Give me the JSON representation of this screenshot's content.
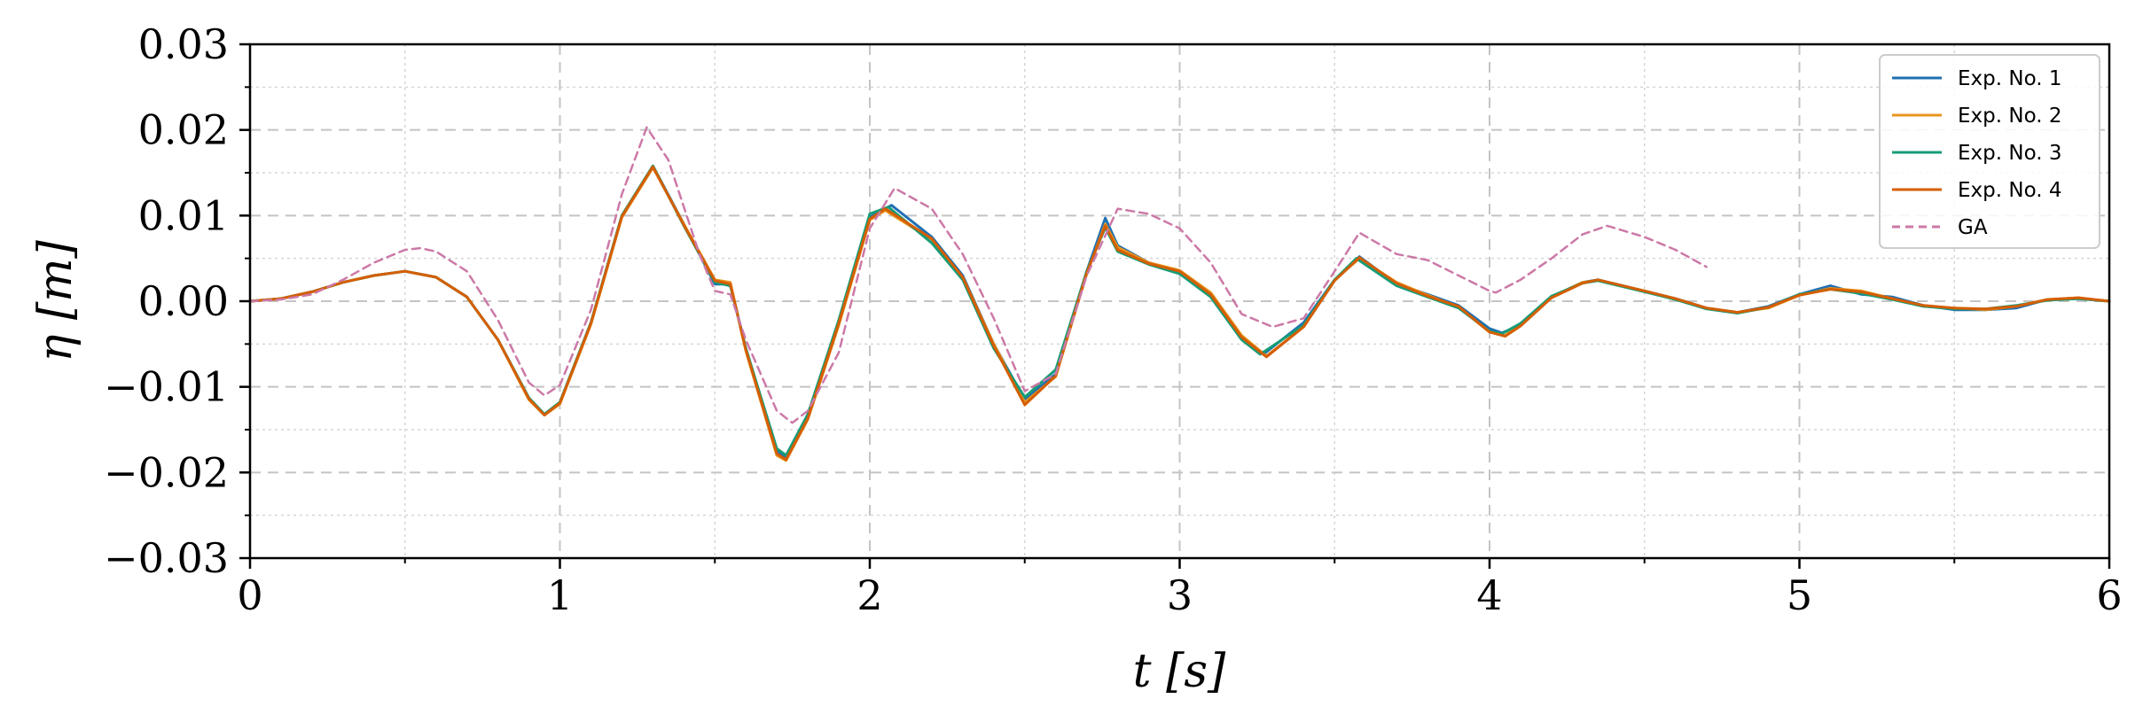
{
  "chart_data": {
    "type": "line",
    "title": "",
    "xlabel": "t [s]",
    "ylabel": "η [m]",
    "xlim": [
      0,
      6
    ],
    "ylim": [
      -0.03,
      0.03
    ],
    "xticks": [
      0,
      1,
      2,
      3,
      4,
      5,
      6
    ],
    "xtick_labels": [
      "0",
      "1",
      "2",
      "3",
      "4",
      "5",
      "6"
    ],
    "yticks": [
      -0.03,
      -0.02,
      -0.01,
      0.0,
      0.01,
      0.02,
      0.03
    ],
    "ytick_labels": [
      "−0.03",
      "−0.02",
      "−0.01",
      "0.00",
      "0.01",
      "0.02",
      "0.03"
    ],
    "grid": true,
    "legend_position": "top-right",
    "series": [
      {
        "name": "Exp. No. 1",
        "color": "#1f6fb2",
        "style": "solid",
        "x": [
          0,
          0.1,
          0.2,
          0.3,
          0.4,
          0.5,
          0.6,
          0.7,
          0.8,
          0.9,
          0.95,
          1.0,
          1.1,
          1.2,
          1.3,
          1.4,
          1.5,
          1.55,
          1.6,
          1.7,
          1.73,
          1.8,
          1.9,
          2.0,
          2.07,
          2.2,
          2.3,
          2.4,
          2.5,
          2.6,
          2.7,
          2.76,
          2.8,
          2.9,
          3.0,
          3.1,
          3.2,
          3.27,
          3.4,
          3.5,
          3.58,
          3.7,
          3.8,
          3.9,
          4.0,
          4.04,
          4.1,
          4.2,
          4.3,
          4.35,
          4.5,
          4.6,
          4.7,
          4.8,
          4.9,
          5.0,
          5.1,
          5.2,
          5.3,
          5.4,
          5.5,
          5.6,
          5.7,
          5.8,
          5.9,
          6.0
        ],
        "y": [
          0,
          0.0003,
          0.0011,
          0.0022,
          0.003,
          0.0035,
          0.0028,
          0.0005,
          -0.0045,
          -0.0113,
          -0.0132,
          -0.0118,
          -0.0025,
          0.01,
          0.0158,
          0.009,
          0.002,
          0.002,
          -0.0055,
          -0.0175,
          -0.0183,
          -0.0135,
          -0.0025,
          0.0098,
          0.0112,
          0.0075,
          0.003,
          -0.005,
          -0.0115,
          -0.0085,
          0.0035,
          0.0097,
          0.0065,
          0.0045,
          0.0035,
          0.0008,
          -0.0042,
          -0.0062,
          -0.0025,
          0.0025,
          0.0052,
          0.002,
          0.0008,
          -0.0005,
          -0.0032,
          -0.0037,
          -0.0028,
          0.0005,
          0.0022,
          0.0025,
          0.0012,
          0.0003,
          -0.0008,
          -0.0013,
          -0.0006,
          0.0008,
          0.0018,
          0.0008,
          0.0005,
          -0.0005,
          -0.001,
          -0.001,
          -0.0008,
          0.0002,
          0.0003,
          0
        ]
      },
      {
        "name": "Exp. No. 2",
        "color": "#e8961e",
        "style": "solid",
        "x": [
          0,
          0.1,
          0.2,
          0.3,
          0.4,
          0.5,
          0.6,
          0.7,
          0.8,
          0.9,
          0.95,
          1.0,
          1.1,
          1.2,
          1.3,
          1.4,
          1.5,
          1.55,
          1.6,
          1.7,
          1.73,
          1.8,
          1.9,
          2.0,
          2.05,
          2.2,
          2.3,
          2.4,
          2.5,
          2.6,
          2.7,
          2.76,
          2.8,
          2.9,
          3.0,
          3.1,
          3.2,
          3.28,
          3.4,
          3.5,
          3.58,
          3.7,
          3.8,
          3.9,
          4.0,
          4.05,
          4.1,
          4.2,
          4.3,
          4.35,
          4.5,
          4.6,
          4.7,
          4.8,
          4.9,
          5.0,
          5.1,
          5.2,
          5.3,
          5.4,
          5.5,
          5.6,
          5.7,
          5.8,
          5.9,
          6.0
        ],
        "y": [
          0,
          0.0003,
          0.0011,
          0.0022,
          0.003,
          0.0035,
          0.0028,
          0.0005,
          -0.0045,
          -0.0115,
          -0.0133,
          -0.012,
          -0.0027,
          0.0098,
          0.0156,
          0.009,
          0.0025,
          0.0022,
          -0.0058,
          -0.018,
          -0.0186,
          -0.0138,
          -0.0028,
          0.0095,
          0.0106,
          0.0072,
          0.0028,
          -0.005,
          -0.0118,
          -0.0088,
          0.0032,
          0.009,
          0.0063,
          0.0045,
          0.0036,
          0.001,
          -0.004,
          -0.0064,
          -0.003,
          0.0025,
          0.005,
          0.0022,
          0.0007,
          -0.0007,
          -0.0036,
          -0.004,
          -0.0028,
          0.0005,
          0.0022,
          0.0024,
          0.0012,
          0.0002,
          -0.0008,
          -0.0013,
          -0.0008,
          0.0007,
          0.0015,
          0.0012,
          0.0003,
          -0.0006,
          -0.0008,
          -0.001,
          -0.0006,
          0.0002,
          0.0004,
          0
        ]
      },
      {
        "name": "Exp. No. 3",
        "color": "#169c78",
        "style": "solid",
        "x": [
          0,
          0.1,
          0.2,
          0.3,
          0.4,
          0.5,
          0.6,
          0.7,
          0.8,
          0.9,
          0.95,
          1.0,
          1.1,
          1.2,
          1.3,
          1.4,
          1.5,
          1.55,
          1.6,
          1.7,
          1.73,
          1.8,
          1.9,
          2.0,
          2.06,
          2.2,
          2.3,
          2.4,
          2.5,
          2.6,
          2.7,
          2.76,
          2.8,
          2.9,
          3.0,
          3.1,
          3.2,
          3.26,
          3.4,
          3.5,
          3.57,
          3.7,
          3.8,
          3.9,
          4.0,
          4.04,
          4.1,
          4.2,
          4.3,
          4.35,
          4.5,
          4.6,
          4.7,
          4.8,
          4.9,
          5.0,
          5.1,
          5.2,
          5.3,
          5.4,
          5.5,
          5.6,
          5.7,
          5.8,
          5.9,
          6.0
        ],
        "y": [
          0,
          0.0003,
          0.0011,
          0.0022,
          0.003,
          0.0035,
          0.0028,
          0.0005,
          -0.0045,
          -0.0113,
          -0.0132,
          -0.0118,
          -0.0025,
          0.01,
          0.0158,
          0.0088,
          0.0022,
          0.0018,
          -0.0055,
          -0.0172,
          -0.018,
          -0.0132,
          -0.0022,
          0.0102,
          0.011,
          0.0068,
          0.0025,
          -0.0055,
          -0.0112,
          -0.008,
          0.0035,
          0.0086,
          0.0058,
          0.0043,
          0.0032,
          0.0005,
          -0.0045,
          -0.0062,
          -0.0028,
          0.0025,
          0.005,
          0.0018,
          0.0005,
          -0.0008,
          -0.0035,
          -0.0038,
          -0.0026,
          0.0006,
          0.0021,
          0.0024,
          0.0011,
          0.0002,
          -0.0009,
          -0.0014,
          -0.0007,
          0.0008,
          0.0014,
          0.0009,
          0.0002,
          -0.0006,
          -0.0009,
          -0.0009,
          -0.0005,
          0.0001,
          0.0003,
          0
        ]
      },
      {
        "name": "Exp. No. 4",
        "color": "#d55e00",
        "style": "solid",
        "x": [
          0,
          0.1,
          0.2,
          0.3,
          0.4,
          0.5,
          0.6,
          0.7,
          0.8,
          0.9,
          0.95,
          1.0,
          1.1,
          1.2,
          1.3,
          1.4,
          1.5,
          1.55,
          1.6,
          1.7,
          1.73,
          1.8,
          1.9,
          2.0,
          2.05,
          2.2,
          2.3,
          2.4,
          2.5,
          2.6,
          2.7,
          2.76,
          2.8,
          2.9,
          3.0,
          3.1,
          3.2,
          3.28,
          3.4,
          3.5,
          3.58,
          3.7,
          3.8,
          3.9,
          4.0,
          4.05,
          4.1,
          4.2,
          4.3,
          4.35,
          4.5,
          4.6,
          4.7,
          4.8,
          4.9,
          5.0,
          5.1,
          5.2,
          5.3,
          5.4,
          5.5,
          5.6,
          5.7,
          5.8,
          5.9,
          6.0
        ],
        "y": [
          0,
          0.0003,
          0.0011,
          0.0022,
          0.003,
          0.0035,
          0.0028,
          0.0005,
          -0.0045,
          -0.0114,
          -0.0133,
          -0.0119,
          -0.0026,
          0.0099,
          0.0157,
          0.0089,
          0.0024,
          0.002,
          -0.0057,
          -0.0178,
          -0.0185,
          -0.0137,
          -0.0026,
          0.0096,
          0.0108,
          0.0073,
          0.0028,
          -0.0052,
          -0.0121,
          -0.0087,
          0.0033,
          0.0088,
          0.006,
          0.0044,
          0.0035,
          0.0008,
          -0.0042,
          -0.0065,
          -0.003,
          0.0024,
          0.0051,
          0.0021,
          0.0006,
          -0.0006,
          -0.0036,
          -0.0041,
          -0.0029,
          0.0004,
          0.0021,
          0.0025,
          0.0012,
          0.0003,
          -0.0008,
          -0.0013,
          -0.0007,
          0.0007,
          0.0014,
          0.0011,
          0.0003,
          -0.0005,
          -0.0008,
          -0.0009,
          -0.0006,
          0.0002,
          0.0004,
          0
        ]
      },
      {
        "name": "GA",
        "color": "#cc79a7",
        "style": "dashed",
        "x": [
          0,
          0.1,
          0.2,
          0.3,
          0.4,
          0.5,
          0.55,
          0.6,
          0.7,
          0.8,
          0.9,
          0.95,
          1.0,
          1.1,
          1.2,
          1.28,
          1.35,
          1.45,
          1.5,
          1.55,
          1.6,
          1.7,
          1.75,
          1.8,
          1.9,
          2.0,
          2.08,
          2.2,
          2.3,
          2.4,
          2.5,
          2.6,
          2.7,
          2.8,
          2.9,
          3.0,
          3.1,
          3.2,
          3.3,
          3.4,
          3.5,
          3.58,
          3.7,
          3.8,
          3.9,
          4.0,
          4.02,
          4.1,
          4.2,
          4.3,
          4.38,
          4.5,
          4.6,
          4.7
        ],
        "y": [
          0,
          0.0002,
          0.0008,
          0.0025,
          0.0045,
          0.006,
          0.0062,
          0.0058,
          0.0035,
          -0.0022,
          -0.0095,
          -0.011,
          -0.0098,
          -0.001,
          0.0125,
          0.0203,
          0.0165,
          0.0055,
          0.0012,
          0.0008,
          -0.0045,
          -0.0128,
          -0.0142,
          -0.0128,
          -0.006,
          0.0085,
          0.0132,
          0.0108,
          0.0055,
          -0.002,
          -0.0105,
          -0.0085,
          0.003,
          0.0108,
          0.0102,
          0.0085,
          0.0045,
          -0.0015,
          -0.003,
          -0.002,
          0.0035,
          0.008,
          0.0055,
          0.0048,
          0.003,
          0.0012,
          0.001,
          0.0025,
          0.005,
          0.0078,
          0.0088,
          0.0075,
          0.006,
          0.004
        ]
      }
    ]
  }
}
